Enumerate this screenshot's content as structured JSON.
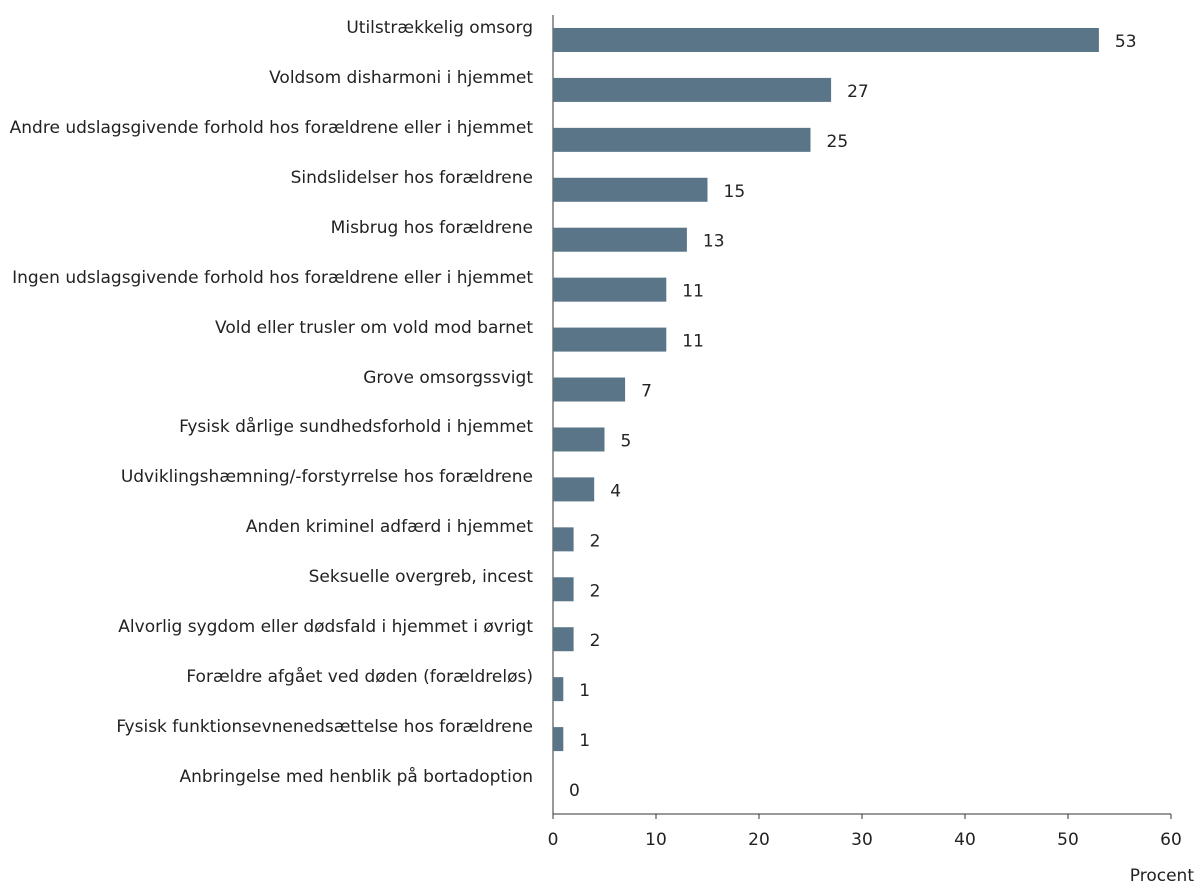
{
  "chart_data": {
    "type": "barh",
    "categories": [
      "Utilstrækkelig omsorg",
      "Voldsom disharmoni i hjemmet",
      "Andre udslagsgivende forhold hos forældrene eller i hjemmet",
      "Sindslidelser hos forældrene",
      "Misbrug hos forældrene",
      "Ingen udslagsgivende forhold hos forældrene eller i hjemmet",
      "Vold eller trusler om vold  mod barnet",
      "Grove omsorgssvigt",
      "Fysisk dårlige sundhedsforhold i hjemmet",
      "Udviklingshæmning/-forstyrrelse hos forældrene",
      "Anden kriminel adfærd i hjemmet",
      "Seksuelle overgreb, incest",
      "Alvorlig sygdom eller dødsfald i hjemmet i øvrigt",
      "Forældre afgået ved døden (forældreløs)",
      "Fysisk funktionsevnenedsættelse hos forældrene",
      "Anbringelse med henblik på bortadoption"
    ],
    "values": [
      53,
      27,
      25,
      15,
      13,
      11,
      11,
      7,
      5,
      4,
      2,
      2,
      2,
      1,
      1,
      0
    ],
    "color": "#5a7587",
    "xlabel": "Procent",
    "xlim": [
      0,
      60
    ],
    "xticks": [
      0,
      10,
      20,
      30,
      40,
      50,
      60
    ]
  }
}
